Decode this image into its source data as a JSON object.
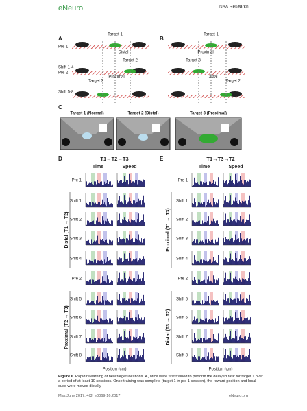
{
  "header": {
    "logo": "eNeuro",
    "section": "New Research",
    "page": "11 of 17"
  },
  "panel_a": {
    "label": "A",
    "rows": [
      "Pre 1",
      "Shift 1-4",
      "Pre 2",
      "Shift 5-8"
    ],
    "target1": "Target 1",
    "distal": "Distal",
    "target2": "Target 2",
    "proximal": "Proximal",
    "target3": "Target 3"
  },
  "panel_b": {
    "label": "B",
    "target1": "Target 1",
    "proximal": "Proximal",
    "target3": "Target 3",
    "distal": "Distal",
    "target2": "Target 2"
  },
  "panel_c": {
    "label": "C",
    "titles": [
      "Target 1 (Normal)",
      "Target 2 (Distal)",
      "Target 3 (Proximal)"
    ]
  },
  "panel_d": {
    "label": "D",
    "sequence": "T1→T2→T3",
    "time": "Time",
    "speed": "Speed",
    "rows": [
      "Pre 1",
      "Shift 1",
      "Shift 2",
      "Shift 3",
      "Shift 4",
      "Pre 2",
      "Shift 5",
      "Shift 6",
      "Shift 7",
      "Shift 8"
    ],
    "groups": [
      "Distal (T1 → T2)",
      "Proximal (T2 → T3)"
    ],
    "xlabel": "Position (cm)"
  },
  "panel_e": {
    "label": "E",
    "sequence": "T1→T3→T2",
    "time": "Time",
    "speed": "Speed",
    "rows": [
      "Pre 1",
      "Shift 1",
      "Shift 2",
      "Shift 3",
      "Shift 4",
      "Pre 2",
      "Shift 5",
      "Shift 6",
      "Shift 7",
      "Shift 8"
    ],
    "groups": [
      "Proximal (T1 → T3)",
      "Distal (T3 → T2)"
    ],
    "xlabel": "Position (cm)"
  },
  "caption": {
    "label": "Figure 6.",
    "text": "Rapid relearning of new target locations.",
    "panel": "A,",
    "body": "Mice were first trained to perform the delayed task for target 1 over a period of at least 10 sessions. Once training was complete (target 1 in pre 1 session), the reward position and local cues were moved distally"
  },
  "footer": {
    "issue": "May/June 2017, 4(3) e0069-16.2017",
    "site": "eNeuro.org"
  }
}
